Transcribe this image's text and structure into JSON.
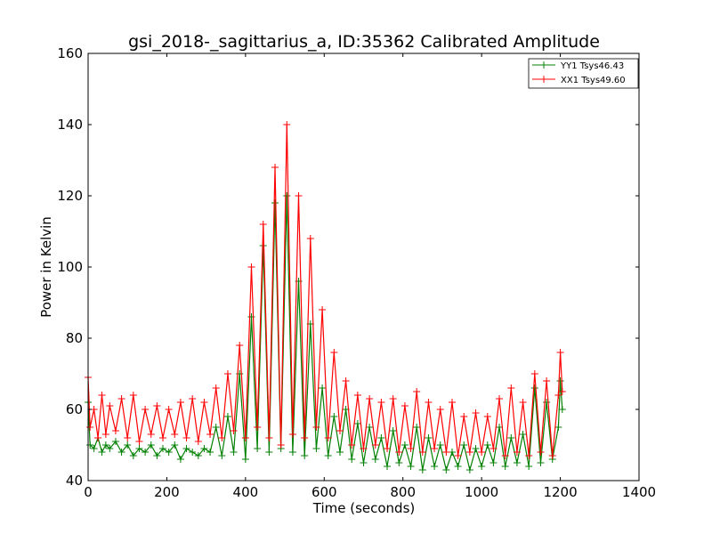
{
  "chart_data": {
    "type": "line",
    "title": "gsi_2018-_sagittarius_a, ID:35362 Calibrated Amplitude",
    "xlabel": "Time (seconds)",
    "ylabel": "Power in Kelvin",
    "xlim": [
      0,
      1400
    ],
    "ylim": [
      40,
      160
    ],
    "xticks": [
      "0",
      "200",
      "400",
      "600",
      "800",
      "1000",
      "1200",
      "1400"
    ],
    "yticks": [
      "40",
      "60",
      "80",
      "100",
      "120",
      "140",
      "160"
    ],
    "grid": false,
    "legend_position": "top-right",
    "marker": "+",
    "series": [
      {
        "name": "YY1 Tsys46.43",
        "color": "#008000",
        "x": [
          0,
          5,
          15,
          25,
          35,
          45,
          55,
          70,
          85,
          100,
          115,
          130,
          145,
          160,
          175,
          190,
          205,
          220,
          235,
          250,
          265,
          280,
          295,
          310,
          325,
          340,
          355,
          370,
          385,
          400,
          415,
          430,
          445,
          460,
          475,
          490,
          505,
          520,
          535,
          550,
          565,
          580,
          595,
          610,
          625,
          640,
          655,
          670,
          685,
          700,
          715,
          730,
          745,
          760,
          775,
          790,
          805,
          820,
          835,
          850,
          865,
          880,
          895,
          910,
          925,
          940,
          955,
          970,
          985,
          1000,
          1015,
          1030,
          1045,
          1060,
          1075,
          1090,
          1105,
          1120,
          1135,
          1150,
          1165,
          1180,
          1195,
          1200,
          1205
        ],
        "y": [
          62,
          50,
          49,
          52,
          48,
          50,
          49,
          51,
          48,
          50,
          47,
          49,
          48,
          50,
          47,
          49,
          48,
          50,
          46,
          49,
          48,
          47,
          49,
          48,
          55,
          47,
          58,
          48,
          70,
          46,
          86,
          49,
          106,
          48,
          118,
          49,
          120,
          48,
          96,
          47,
          84,
          49,
          66,
          47,
          58,
          48,
          60,
          46,
          56,
          45,
          55,
          46,
          52,
          44,
          54,
          45,
          50,
          44,
          55,
          43,
          52,
          44,
          50,
          43,
          48,
          44,
          50,
          43,
          49,
          44,
          50,
          45,
          55,
          44,
          52,
          45,
          53,
          44,
          66,
          45,
          62,
          46,
          55,
          68,
          60
        ]
      },
      {
        "name": "XX1 Tsys49.60",
        "color": "#ff0000",
        "x": [
          0,
          5,
          15,
          25,
          35,
          45,
          55,
          70,
          85,
          100,
          115,
          130,
          145,
          160,
          175,
          190,
          205,
          220,
          235,
          250,
          265,
          280,
          295,
          310,
          325,
          340,
          355,
          370,
          385,
          400,
          415,
          430,
          445,
          460,
          475,
          490,
          505,
          520,
          535,
          550,
          565,
          580,
          595,
          610,
          625,
          640,
          655,
          670,
          685,
          700,
          715,
          730,
          745,
          760,
          775,
          790,
          805,
          820,
          835,
          850,
          865,
          880,
          895,
          910,
          925,
          940,
          955,
          970,
          985,
          1000,
          1015,
          1030,
          1045,
          1060,
          1075,
          1090,
          1105,
          1120,
          1135,
          1150,
          1165,
          1180,
          1195,
          1200,
          1205
        ],
        "y": [
          69,
          55,
          60,
          52,
          64,
          53,
          61,
          54,
          63,
          52,
          64,
          51,
          60,
          53,
          61,
          52,
          60,
          53,
          62,
          52,
          63,
          51,
          62,
          53,
          66,
          52,
          70,
          54,
          78,
          52,
          100,
          55,
          112,
          52,
          128,
          50,
          140,
          53,
          120,
          52,
          108,
          55,
          88,
          52,
          76,
          54,
          68,
          50,
          64,
          49,
          63,
          50,
          62,
          49,
          63,
          48,
          61,
          49,
          65,
          48,
          62,
          49,
          60,
          48,
          62,
          47,
          58,
          48,
          59,
          48,
          58,
          49,
          63,
          47,
          66,
          48,
          62,
          47,
          70,
          48,
          68,
          47,
          64,
          76,
          65
        ]
      }
    ]
  }
}
